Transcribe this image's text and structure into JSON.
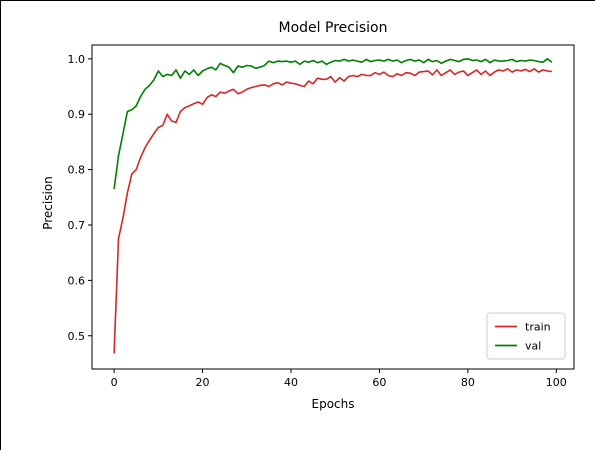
{
  "chart_data": {
    "type": "line",
    "title": "Model Precision",
    "xlabel": "Epochs",
    "ylabel": "Precision",
    "xlim": [
      -5,
      104
    ],
    "ylim": [
      0.44,
      1.025
    ],
    "xticks": [
      0,
      20,
      40,
      60,
      80,
      100
    ],
    "yticks": [
      0.5,
      0.6,
      0.7,
      0.8,
      0.9,
      1.0
    ],
    "xtick_labels": [
      "0",
      "20",
      "40",
      "60",
      "80",
      "100"
    ],
    "ytick_labels": [
      "0.5",
      "0.6",
      "0.7",
      "0.8",
      "0.9",
      "1.0"
    ],
    "grid": false,
    "legend_position": "lower-right",
    "x": [
      0,
      1,
      2,
      3,
      4,
      5,
      6,
      7,
      8,
      9,
      10,
      11,
      12,
      13,
      14,
      15,
      16,
      17,
      18,
      19,
      20,
      21,
      22,
      23,
      24,
      25,
      26,
      27,
      28,
      29,
      30,
      31,
      32,
      33,
      34,
      35,
      36,
      37,
      38,
      39,
      40,
      41,
      42,
      43,
      44,
      45,
      46,
      47,
      48,
      49,
      50,
      51,
      52,
      53,
      54,
      55,
      56,
      57,
      58,
      59,
      60,
      61,
      62,
      63,
      64,
      65,
      66,
      67,
      68,
      69,
      70,
      71,
      72,
      73,
      74,
      75,
      76,
      77,
      78,
      79,
      80,
      81,
      82,
      83,
      84,
      85,
      86,
      87,
      88,
      89,
      90,
      91,
      92,
      93,
      94,
      95,
      96,
      97,
      98,
      99
    ],
    "series": [
      {
        "name": "train",
        "color": "#d62728",
        "values": [
          0.468,
          0.675,
          0.713,
          0.758,
          0.792,
          0.8,
          0.822,
          0.84,
          0.853,
          0.865,
          0.876,
          0.88,
          0.9,
          0.888,
          0.885,
          0.905,
          0.912,
          0.915,
          0.919,
          0.922,
          0.918,
          0.93,
          0.935,
          0.932,
          0.94,
          0.938,
          0.942,
          0.945,
          0.937,
          0.94,
          0.945,
          0.948,
          0.95,
          0.952,
          0.953,
          0.95,
          0.955,
          0.957,
          0.953,
          0.958,
          0.956,
          0.955,
          0.952,
          0.95,
          0.96,
          0.955,
          0.965,
          0.963,
          0.963,
          0.968,
          0.958,
          0.966,
          0.96,
          0.968,
          0.97,
          0.968,
          0.972,
          0.97,
          0.97,
          0.975,
          0.972,
          0.976,
          0.97,
          0.968,
          0.973,
          0.97,
          0.975,
          0.974,
          0.97,
          0.976,
          0.977,
          0.978,
          0.971,
          0.98,
          0.97,
          0.975,
          0.98,
          0.972,
          0.976,
          0.978,
          0.97,
          0.975,
          0.98,
          0.972,
          0.978,
          0.97,
          0.976,
          0.98,
          0.978,
          0.982,
          0.976,
          0.98,
          0.978,
          0.981,
          0.977,
          0.982,
          0.976,
          0.98,
          0.978,
          0.977
        ]
      },
      {
        "name": "val",
        "color": "#007f00",
        "values": [
          0.765,
          0.825,
          0.865,
          0.905,
          0.908,
          0.915,
          0.932,
          0.945,
          0.952,
          0.962,
          0.978,
          0.968,
          0.972,
          0.97,
          0.98,
          0.965,
          0.978,
          0.972,
          0.98,
          0.97,
          0.978,
          0.982,
          0.985,
          0.98,
          0.992,
          0.988,
          0.985,
          0.975,
          0.987,
          0.985,
          0.988,
          0.987,
          0.983,
          0.985,
          0.988,
          0.996,
          0.993,
          0.996,
          0.995,
          0.996,
          0.994,
          0.996,
          0.99,
          0.996,
          0.994,
          0.997,
          0.993,
          0.996,
          0.99,
          0.994,
          0.997,
          0.996,
          0.999,
          0.996,
          0.998,
          0.996,
          0.994,
          0.999,
          0.995,
          0.997,
          0.998,
          0.996,
          0.999,
          0.996,
          0.998,
          0.993,
          0.997,
          0.999,
          0.996,
          0.998,
          0.993,
          0.999,
          0.995,
          0.997,
          0.992,
          0.996,
          0.999,
          0.997,
          0.995,
          0.999,
          1.0,
          0.997,
          0.998,
          0.995,
          0.999,
          0.993,
          0.998,
          0.996,
          0.996,
          0.997,
          0.999,
          0.995,
          0.997,
          0.996,
          0.998,
          0.997,
          0.995,
          0.994,
          1.0,
          0.994
        ]
      }
    ]
  }
}
